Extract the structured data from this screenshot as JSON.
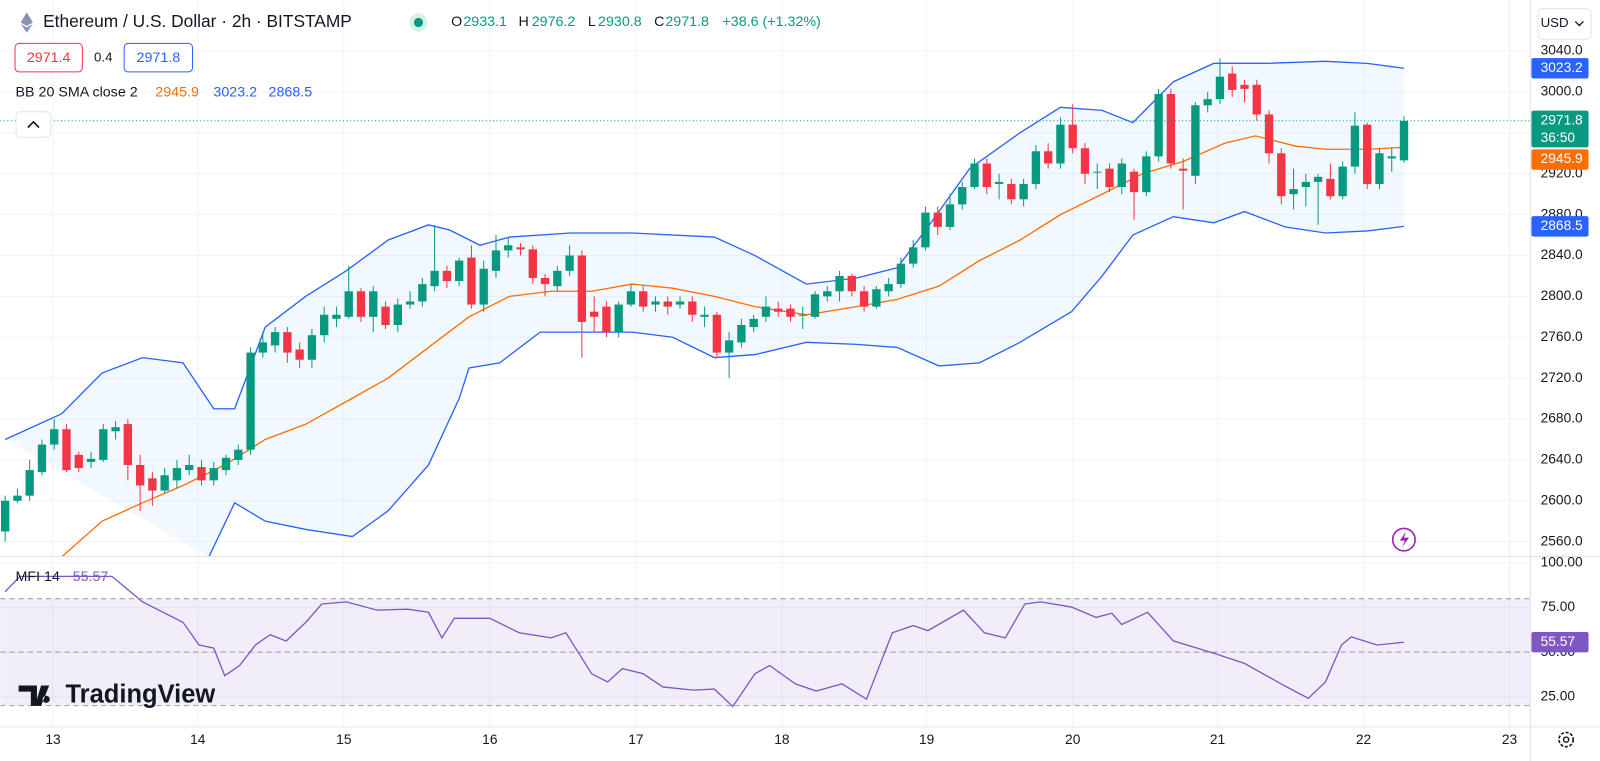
{
  "header": {
    "sell": 2971.4,
    "spread": 0.4,
    "buy": 2971.8,
    "logo": "TradingView"
  },
  "chart_data": [
    {
      "type": "candlestick",
      "title": "Ethereum / U.S. Dollar · 2h · BITSTAMP",
      "ohlc_labels": [
        "O",
        "H",
        "L",
        "C"
      ],
      "change": "+38.6 (+1.32%)",
      "currency": "USD",
      "countdown": "36:50",
      "up_color": "#089981",
      "down_color": "#f23645",
      "open": [
        2570,
        2600,
        2605,
        2628,
        2655,
        2670,
        2645,
        2638,
        2640,
        2668,
        2675,
        2635,
        2622,
        2610,
        2620,
        2630,
        2633,
        2620,
        2630,
        2640,
        2650,
        2745,
        2752,
        2765,
        2748,
        2738,
        2762,
        2778,
        2780,
        2805,
        2780,
        2790,
        2772,
        2792,
        2795,
        2810,
        2825,
        2815,
        2838,
        2792,
        2825,
        2845,
        2848,
        2846,
        2818,
        2810,
        2825,
        2840,
        2785,
        2790,
        2765,
        2792,
        2805,
        2792,
        2795,
        2792,
        2795,
        2780,
        2782,
        2745,
        2755,
        2770,
        2780,
        2788,
        2788,
        2782,
        2780,
        2800,
        2805,
        2820,
        2805,
        2790,
        2805,
        2812,
        2832,
        2848,
        2882,
        2868,
        2890,
        2907,
        2930,
        2910,
        2910,
        2895,
        2910,
        2942,
        2930,
        2968,
        2945,
        2922,
        2925,
        2907,
        2922,
        2902,
        2937,
        2998,
        2925,
        2918,
        2987,
        2993,
        3018,
        3007,
        3007,
        2978,
        2940,
        2900,
        2907,
        2912,
        2915,
        2898,
        2927,
        2968,
        2910,
        2935,
        2933.1
      ],
      "high": [
        2605,
        2612,
        2640,
        2660,
        2680,
        2675,
        2648,
        2648,
        2675,
        2678,
        2680,
        2645,
        2628,
        2632,
        2640,
        2645,
        2640,
        2638,
        2645,
        2655,
        2750,
        2765,
        2770,
        2770,
        2755,
        2768,
        2790,
        2790,
        2830,
        2808,
        2810,
        2795,
        2798,
        2805,
        2818,
        2870,
        2830,
        2838,
        2850,
        2835,
        2860,
        2858,
        2852,
        2850,
        2822,
        2830,
        2850,
        2845,
        2800,
        2795,
        2795,
        2812,
        2810,
        2800,
        2800,
        2800,
        2800,
        2790,
        2785,
        2765,
        2778,
        2782,
        2800,
        2795,
        2792,
        2790,
        2805,
        2810,
        2825,
        2822,
        2810,
        2810,
        2818,
        2838,
        2855,
        2888,
        2888,
        2900,
        2912,
        2935,
        2935,
        2920,
        2915,
        2915,
        2948,
        2950,
        2975,
        2988,
        2950,
        2930,
        2930,
        2935,
        2925,
        2942,
        3003,
        3003,
        2935,
        2990,
        3000,
        3033,
        3025,
        3012,
        3012,
        2982,
        2945,
        2925,
        2920,
        2920,
        2930,
        2932,
        2980,
        2970,
        2945,
        2945,
        2976.2
      ],
      "low": [
        2560,
        2598,
        2600,
        2625,
        2650,
        2628,
        2628,
        2632,
        2638,
        2660,
        2620,
        2590,
        2595,
        2608,
        2612,
        2625,
        2615,
        2615,
        2625,
        2635,
        2645,
        2740,
        2745,
        2735,
        2730,
        2730,
        2755,
        2770,
        2778,
        2775,
        2765,
        2768,
        2765,
        2788,
        2790,
        2805,
        2808,
        2810,
        2788,
        2785,
        2818,
        2838,
        2840,
        2812,
        2800,
        2805,
        2820,
        2740,
        2765,
        2760,
        2760,
        2790,
        2785,
        2785,
        2782,
        2788,
        2775,
        2770,
        2740,
        2720,
        2750,
        2765,
        2775,
        2780,
        2775,
        2768,
        2778,
        2795,
        2795,
        2800,
        2785,
        2788,
        2800,
        2808,
        2828,
        2845,
        2860,
        2865,
        2885,
        2905,
        2900,
        2895,
        2890,
        2888,
        2905,
        2925,
        2925,
        2940,
        2910,
        2905,
        2902,
        2900,
        2875,
        2898,
        2932,
        2925,
        2885,
        2910,
        2980,
        2988,
        2995,
        2990,
        2972,
        2930,
        2890,
        2885,
        2888,
        2870,
        2895,
        2895,
        2920,
        2905,
        2905,
        2922,
        2930.8
      ],
      "close": [
        2600,
        2605,
        2630,
        2655,
        2670,
        2630,
        2632,
        2641,
        2670,
        2672,
        2635,
        2615,
        2610,
        2625,
        2632,
        2635,
        2620,
        2632,
        2642,
        2650,
        2745,
        2755,
        2765,
        2745,
        2738,
        2762,
        2782,
        2782,
        2805,
        2780,
        2805,
        2772,
        2792,
        2795,
        2812,
        2825,
        2815,
        2835,
        2792,
        2827,
        2845,
        2850,
        2846,
        2818,
        2812,
        2825,
        2840,
        2775,
        2780,
        2765,
        2792,
        2805,
        2790,
        2795,
        2790,
        2795,
        2782,
        2782,
        2745,
        2757,
        2772,
        2778,
        2790,
        2785,
        2780,
        2782,
        2802,
        2805,
        2820,
        2805,
        2790,
        2807,
        2812,
        2832,
        2848,
        2882,
        2868,
        2890,
        2907,
        2930,
        2907,
        2912,
        2895,
        2910,
        2942,
        2930,
        2968,
        2945,
        2920,
        2922,
        2907,
        2930,
        2902,
        2937,
        2998,
        2930,
        2923,
        2987,
        2993,
        3015,
        3002,
        3003,
        2978,
        2940,
        2898,
        2905,
        2912,
        2917,
        2898,
        2927,
        2967,
        2910,
        2940,
        2937,
        2971.8
      ],
      "xlim": [
        -0.4,
        124.3
      ],
      "xticks": [
        {
          "value": 3.9,
          "label": "13"
        },
        {
          "value": 15.7,
          "label": "14"
        },
        {
          "value": 27.6,
          "label": "15"
        },
        {
          "value": 39.5,
          "label": "16"
        },
        {
          "value": 51.4,
          "label": "17"
        },
        {
          "value": 63.3,
          "label": "18"
        },
        {
          "value": 75.1,
          "label": "19"
        },
        {
          "value": 87,
          "label": "20"
        },
        {
          "value": 98.8,
          "label": "21"
        },
        {
          "value": 110.7,
          "label": "22"
        },
        {
          "value": 122.6,
          "label": "23"
        }
      ],
      "ylim": [
        2546,
        3090
      ],
      "yticks": [
        {
          "value": 3040,
          "label": "3040.0"
        },
        {
          "value": 3000,
          "label": "3000.0"
        },
        {
          "value": 2960,
          "label": "2960.0"
        },
        {
          "value": 2920,
          "label": "2920.0"
        },
        {
          "value": 2880,
          "label": "2880.0"
        },
        {
          "value": 2840,
          "label": "2840.0"
        },
        {
          "value": 2800,
          "label": "2800.0"
        },
        {
          "value": 2760,
          "label": "2760.0"
        },
        {
          "value": 2720,
          "label": "2720.0"
        },
        {
          "value": 2680,
          "label": "2680.0"
        },
        {
          "value": 2640,
          "label": "2640.0"
        },
        {
          "value": 2600,
          "label": "2600.0"
        },
        {
          "value": 2560,
          "label": "2560.0"
        }
      ],
      "grid": true,
      "indicator_label": "BB 20 SMA close 2",
      "band_fill": "#2196f3",
      "series": [
        {
          "color": "#ff6d00",
          "x": [
            4.6,
            7.9,
            11.2,
            14.5,
            17.9,
            21.2,
            24.5,
            27.8,
            31.2,
            34.5,
            37.8,
            41.1,
            44.5,
            47.8,
            51.1,
            54.4,
            57.8,
            61.1,
            65.3,
            69.4,
            72.7,
            76.1,
            79.4,
            82.7,
            86,
            89.4,
            92.7,
            96,
            99.4,
            101.9,
            105.2,
            107.6,
            111,
            114
          ],
          "values": [
            2545,
            2580,
            2598,
            2615,
            2635,
            2660,
            2675,
            2697,
            2720,
            2750,
            2780,
            2800,
            2805,
            2805,
            2812,
            2808,
            2800,
            2790,
            2782,
            2790,
            2797,
            2810,
            2835,
            2855,
            2880,
            2900,
            2920,
            2932,
            2950,
            2957,
            2947,
            2944,
            2944,
            2945.9
          ]
        },
        {
          "color": "#2962ff",
          "x": [
            0,
            4.6,
            7.9,
            11.2,
            14.5,
            17,
            18.7,
            21.2,
            24.5,
            27.8,
            31.2,
            34.5,
            36.2,
            38.7,
            41.1,
            46.1,
            51.1,
            57.8,
            61.1,
            65.3,
            69.4,
            72.7,
            75.2,
            78.6,
            82.7,
            86,
            89.4,
            91.9,
            95.2,
            98.5,
            102.7,
            107.6,
            111,
            114
          ],
          "values": [
            2660,
            2685,
            2725,
            2740,
            2735,
            2690,
            2690,
            2770,
            2800,
            2825,
            2855,
            2870,
            2865,
            2850,
            2858,
            2862,
            2862,
            2858,
            2840,
            2812,
            2818,
            2828,
            2868,
            2925,
            2960,
            2985,
            2982,
            2970,
            3010,
            3028,
            3028,
            3030,
            3028,
            3023.2
          ]
        },
        {
          "color": "#2962ff",
          "x": [
            16.6,
            18.7,
            21.2,
            24.5,
            28.3,
            31.2,
            34.5,
            37,
            37.8,
            40.3,
            43.6,
            46.1,
            51.1,
            54.4,
            57.8,
            61.1,
            65.3,
            69.4,
            72.7,
            76.1,
            79.4,
            82.7,
            86.9,
            89.4,
            91.9,
            95.2,
            98.5,
            101,
            104.3,
            107.6,
            111,
            114
          ],
          "values": [
            2545,
            2598,
            2580,
            2572,
            2565,
            2590,
            2635,
            2700,
            2730,
            2735,
            2765,
            2765,
            2765,
            2760,
            2740,
            2743,
            2755,
            2753,
            2750,
            2732,
            2735,
            2755,
            2785,
            2820,
            2860,
            2878,
            2872,
            2883,
            2868,
            2862,
            2864,
            2868.5
          ]
        }
      ]
    },
    {
      "type": "line",
      "title": "MFI 14",
      "color": "#7e57c2",
      "band_fill": "#7e57c2",
      "x": [
        0,
        1.2,
        8.7,
        11.2,
        14.5,
        15.8,
        17,
        17.9,
        19.1,
        20.4,
        21.6,
        22.9,
        24.5,
        25.8,
        27.8,
        30.3,
        32.8,
        34.5,
        35.6,
        36.6,
        39.5,
        41.9,
        44.5,
        45.7,
        47.8,
        49.1,
        50.3,
        52,
        53.6,
        56.1,
        57.8,
        59.3,
        61.1,
        62.3,
        64.4,
        66.1,
        68.2,
        70.2,
        72.3,
        74,
        75.2,
        78.1,
        79.8,
        81.5,
        83.1,
        84.4,
        86.9,
        88.9,
        90.2,
        91,
        93.1,
        95.2,
        98.5,
        101,
        104.3,
        106.2,
        107.6,
        108.9,
        109.7,
        111.8,
        114
      ],
      "values": [
        83.9,
        92.5,
        92.5,
        78.2,
        66.7,
        54,
        52.3,
        36.8,
        42.5,
        54,
        59.8,
        56.3,
        66.7,
        77,
        78.2,
        73.6,
        74.1,
        72.4,
        58,
        69,
        69,
        60.9,
        58,
        60.9,
        37.9,
        33.3,
        40.8,
        37.9,
        30.5,
        28.7,
        29.3,
        19.5,
        37.9,
        42.5,
        32.2,
        28.2,
        32.2,
        23.6,
        60.9,
        64.9,
        62.1,
        73.6,
        60.9,
        58,
        77,
        78.2,
        75.3,
        69.5,
        71.8,
        65.5,
        72.4,
        56.3,
        49.4,
        43.7,
        31,
        24.1,
        33.3,
        54,
        58.6,
        54,
        55.57
      ],
      "xlim": [
        -0.4,
        124.3
      ],
      "ylim": [
        8.4,
        103.4
      ],
      "yticks": [
        {
          "value": 100,
          "label": "100.00"
        },
        {
          "value": 75,
          "label": "75.00"
        },
        {
          "value": 50,
          "label": "50.00"
        },
        {
          "value": 25,
          "label": "25.00"
        }
      ],
      "bands": [
        80,
        50,
        20
      ],
      "grid": true
    }
  ]
}
